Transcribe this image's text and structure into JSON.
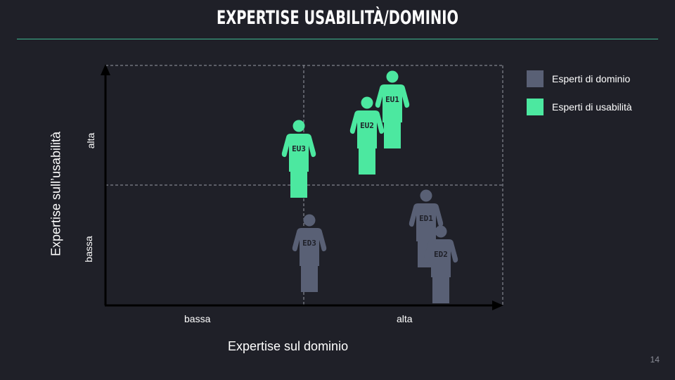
{
  "slide": {
    "title": "Expertise usabilità/dominio",
    "page_number": "14"
  },
  "axes": {
    "x_title": "Expertise sul dominio",
    "y_title": "Expertise sull’usabilità",
    "x_low": "bassa",
    "x_high": "alta",
    "y_low": "bassa",
    "y_high": "alta"
  },
  "legend": {
    "domain_label": "Esperti di dominio",
    "usability_label": "Esperti di usabilità"
  },
  "colors": {
    "background": "#1f2028",
    "usability": "#4ce8a0",
    "domain": "#596075",
    "accent_rule": "#3fb890",
    "grid": "#9a9ca6"
  },
  "people": [
    {
      "label": "EU1",
      "group": "usability"
    },
    {
      "label": "EU2",
      "group": "usability"
    },
    {
      "label": "EU3",
      "group": "usability"
    },
    {
      "label": "ED1",
      "group": "domain"
    },
    {
      "label": "ED2",
      "group": "domain"
    },
    {
      "label": "ED3",
      "group": "domain"
    }
  ]
}
